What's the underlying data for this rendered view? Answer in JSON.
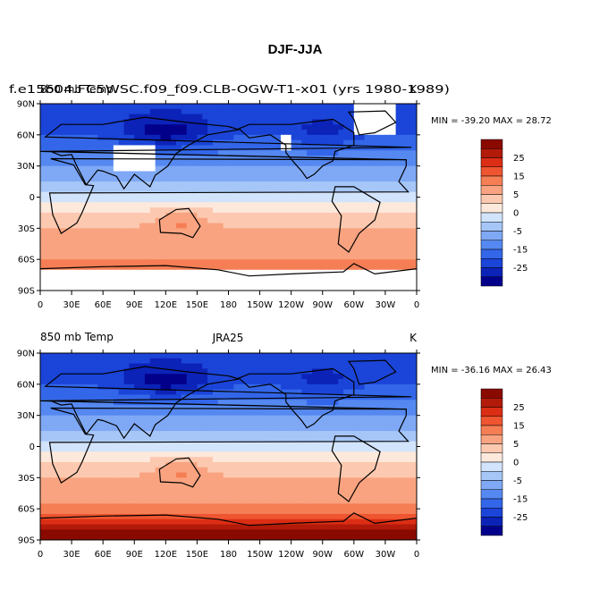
{
  "page_title": "DJF-JJA",
  "panels": [
    {
      "left_title": "850 mb Temp",
      "case_title": "f.e15b04.FC5WSC.f09_f09.CLB-OGW-T1-x01 (yrs 1980-1989)",
      "center_title": "",
      "units": "K",
      "min_max": "MIN = -39.20 MAX =  28.72"
    },
    {
      "left_title": "850 mb Temp",
      "case_title": "",
      "center_title": "JRA25",
      "units": "K",
      "min_max": "MIN = -36.16 MAX =  26.43"
    }
  ],
  "chart_data": {
    "type": "heatmap",
    "title": "DJF-JJA",
    "variable": "850 mb Temp",
    "units": "K",
    "x_ticks": [
      "0",
      "30E",
      "60E",
      "90E",
      "120E",
      "150E",
      "180",
      "150W",
      "120W",
      "90W",
      "60W",
      "30W",
      "0"
    ],
    "y_ticks": [
      "90N",
      "60N",
      "30N",
      "0",
      "30S",
      "60S",
      "90S"
    ],
    "xlim": [
      0,
      360
    ],
    "ylim": [
      -90,
      90
    ],
    "colorbar": {
      "levels": [
        -30,
        -25,
        -20,
        -15,
        -10,
        -5,
        -2,
        0,
        2,
        5,
        10,
        15,
        20,
        25,
        30
      ],
      "labels": [
        "25",
        "15",
        "5",
        "0",
        "-5",
        "-15",
        "-25"
      ],
      "colors": [
        "#02008b",
        "#0c23b8",
        "#1b44d8",
        "#3366e8",
        "#5588f0",
        "#7fa8f5",
        "#a6c6f8",
        "#d2e4fb",
        "#fde9dc",
        "#fcc9b0",
        "#f9a380",
        "#f57e55",
        "#ee5530",
        "#dc2e14",
        "#b21a0a",
        "#8a0a00"
      ]
    },
    "series": [
      {
        "min": -39.2,
        "max": 28.72
      },
      {
        "min": -36.16,
        "max": 26.43
      }
    ]
  },
  "colors": {
    "ocean_mid": "#d2e4fb",
    "land_outline": "#000000",
    "missing": "#ffffff"
  }
}
